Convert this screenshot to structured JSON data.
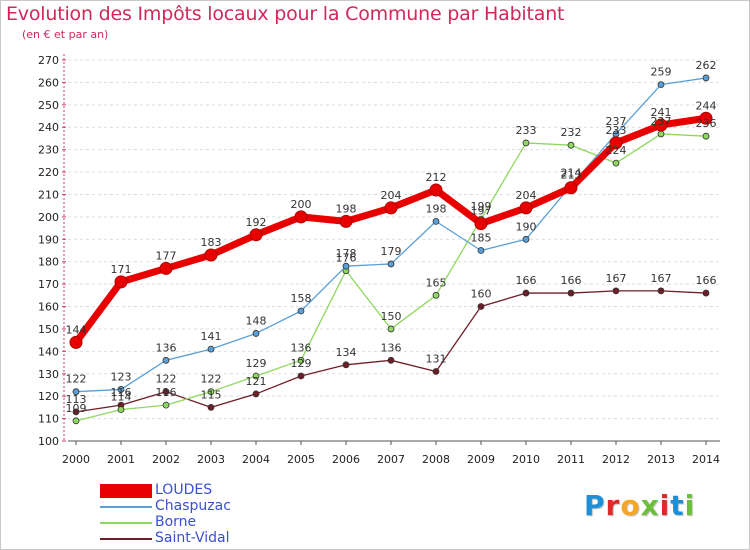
{
  "header": {
    "title": "Evolution des Impôts locaux pour la Commune par Habitant",
    "subtitle": "(en € et par an)"
  },
  "logo": {
    "letters": [
      "P",
      "r",
      "o",
      "x",
      "i",
      "t",
      "i"
    ],
    "colors": [
      "#1e8fd6",
      "#e0282a",
      "#f5a623",
      "#6cbf3a",
      "#e0282a",
      "#1e8fd6",
      "#6cbf3a"
    ]
  },
  "chart_data": {
    "type": "line",
    "title": "Evolution des Impôts locaux pour la Commune par Habitant",
    "subtitle": "(en € et par an)",
    "xlabel": "",
    "ylabel": "",
    "ylim": [
      100,
      270
    ],
    "yticks": [
      100,
      110,
      120,
      130,
      140,
      150,
      160,
      170,
      180,
      190,
      200,
      210,
      220,
      230,
      240,
      250,
      260,
      270
    ],
    "x": [
      2000,
      2001,
      2002,
      2003,
      2004,
      2005,
      2006,
      2007,
      2008,
      2009,
      2010,
      2011,
      2012,
      2013,
      2014
    ],
    "grid": "horizontal dashed",
    "legend_position": "bottom-left",
    "series": [
      {
        "name": "Saint-Vidal",
        "color": "#6e1e28",
        "width": 1.3,
        "radius": 3,
        "values": [
          113,
          116,
          122,
          115,
          121,
          129,
          134,
          136,
          131,
          160,
          166,
          166,
          167,
          167,
          166
        ]
      },
      {
        "name": "Borne",
        "color": "#8fd860",
        "width": 1.3,
        "radius": 3,
        "values": [
          109,
          114,
          116,
          122,
          129,
          136,
          176,
          150,
          165,
          199,
          233,
          232,
          224,
          237,
          236
        ]
      },
      {
        "name": "Chaspuzac",
        "color": "#5aa0d8",
        "width": 1.3,
        "radius": 3,
        "values": [
          122,
          123,
          136,
          141,
          148,
          158,
          178,
          179,
          198,
          185,
          190,
          214,
          237,
          259,
          262
        ]
      },
      {
        "name": "LOUDES",
        "color": "#e80000",
        "width": 7,
        "radius": 6,
        "values": [
          144,
          171,
          177,
          183,
          192,
          200,
          198,
          204,
          212,
          197,
          204,
          213,
          233,
          241,
          244
        ]
      }
    ],
    "legend_order": [
      "LOUDES",
      "Chaspuzac",
      "Borne",
      "Saint-Vidal"
    ]
  }
}
